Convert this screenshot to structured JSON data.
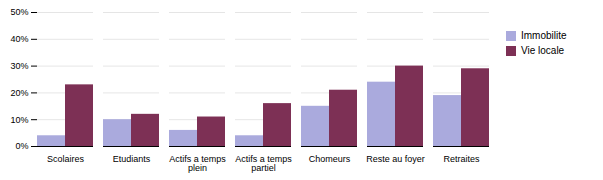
{
  "chart_data": {
    "type": "bar",
    "categories": [
      "Scolaires",
      "Etudiants",
      "Actifs a temps\nplein",
      "Actifs a temps\npartiel",
      "Chomeurs",
      "Reste au foyer",
      "Retraites"
    ],
    "series": [
      {
        "name": "Immobilite",
        "color": "#aaaadd",
        "values": [
          4,
          10,
          6,
          4,
          15,
          24,
          19
        ]
      },
      {
        "name": "Vie locale",
        "color": "#7d3055",
        "values": [
          23,
          12,
          11,
          16,
          21,
          30,
          29
        ]
      }
    ],
    "ylim": [
      0,
      50
    ],
    "yticks": [
      {
        "value": 0,
        "label": "0%"
      },
      {
        "value": 10,
        "label": "10%"
      },
      {
        "value": 20,
        "label": "20%"
      },
      {
        "value": 30,
        "label": "30%"
      },
      {
        "value": 40,
        "label": "40%"
      },
      {
        "value": 50,
        "label": "50%"
      }
    ],
    "grid": true,
    "legend": "right"
  }
}
